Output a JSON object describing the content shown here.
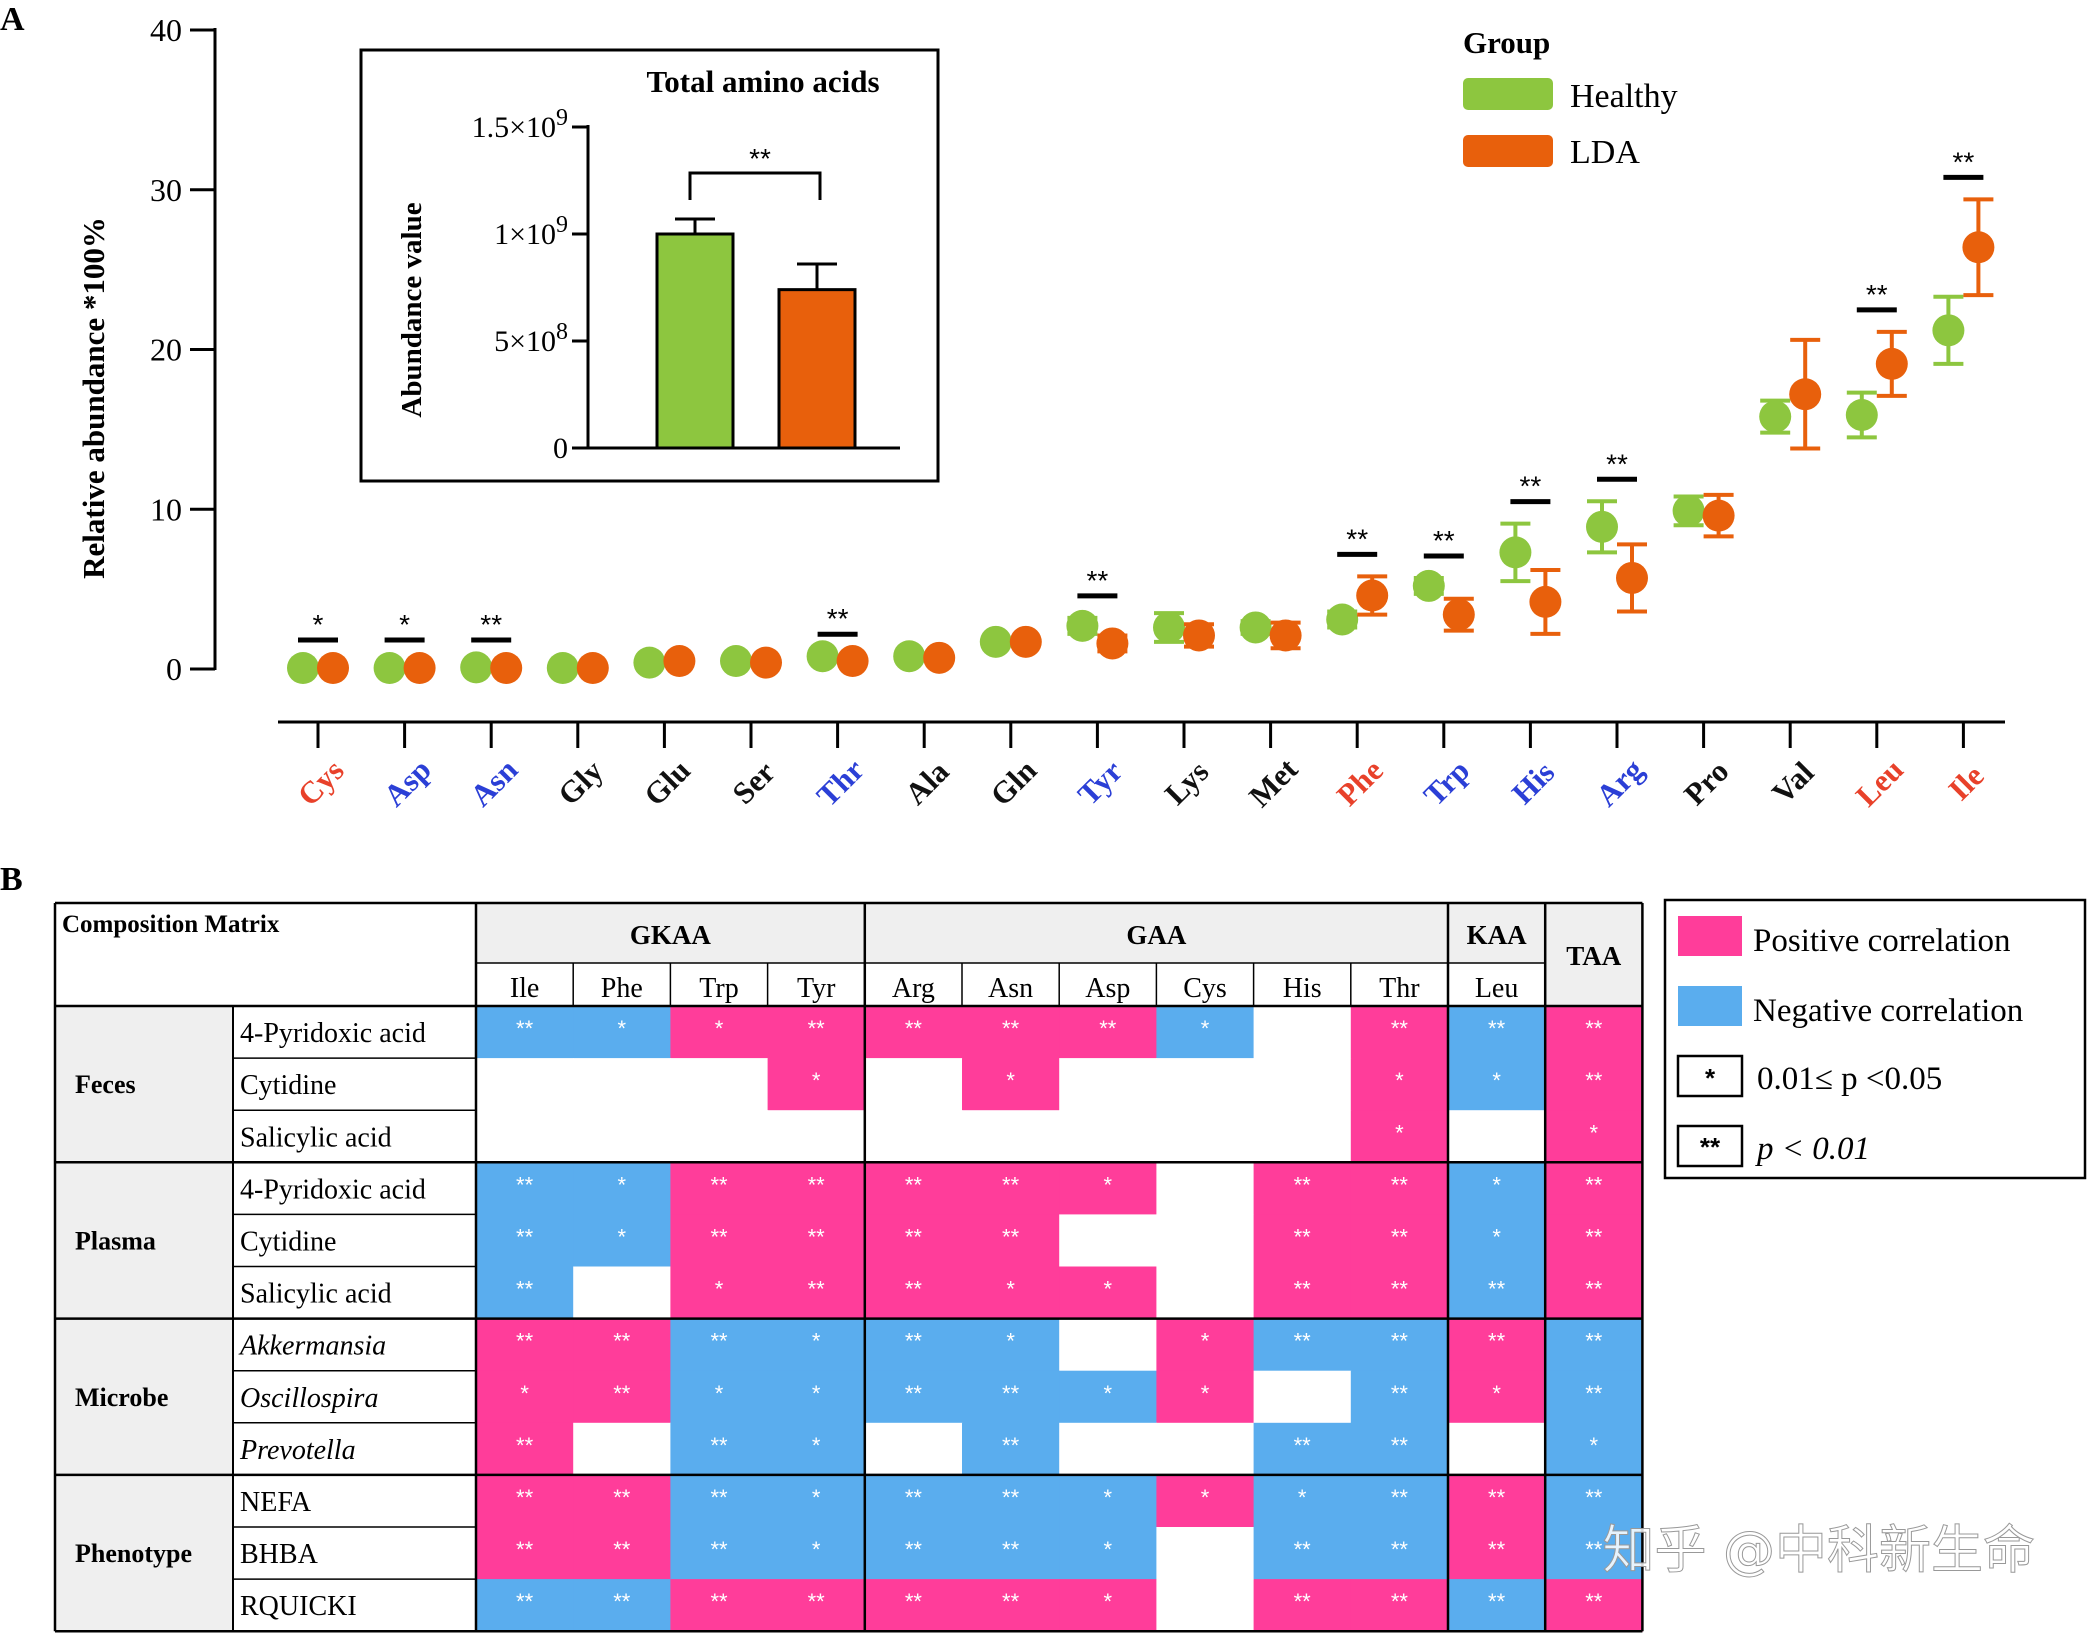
{
  "panel_a": {
    "letter": "A",
    "ylabel": "Relative abundance *100%",
    "y_ticks": [
      "0",
      "10",
      "20",
      "30",
      "40"
    ],
    "legend": {
      "title": "Group",
      "items": [
        "Healthy",
        "LDA"
      ]
    },
    "inset": {
      "title": "Total amino acids",
      "ylabel": "Abundance value",
      "y_ticks": [
        "0",
        "5×10",
        "1×10",
        "1.5×10"
      ],
      "y_tick_exps": [
        "",
        "8",
        "9",
        "9"
      ],
      "sig": "**"
    }
  },
  "panel_b": {
    "letter": "B",
    "header_left": "Composition  Matrix",
    "groups": [
      {
        "name": "GKAA",
        "cols": [
          "Ile",
          "Phe",
          "Trp",
          "Tyr"
        ]
      },
      {
        "name": "GAA",
        "cols": [
          "Arg",
          "Asn",
          "Asp",
          "Cys",
          "His",
          "Thr"
        ]
      },
      {
        "name": "KAA",
        "cols": [
          "Leu"
        ]
      },
      {
        "name": "TAA",
        "cols": [
          ""
        ]
      }
    ],
    "row_groups": [
      {
        "name": "Feces",
        "rows": [
          "4-Pyridoxic acid",
          "Cytidine",
          "Salicylic acid"
        ]
      },
      {
        "name": "Plasma",
        "rows": [
          "4-Pyridoxic acid",
          "Cytidine",
          "Salicylic acid"
        ]
      },
      {
        "name": "Microbe",
        "rows": [
          "Akkermansia",
          "Oscillospira",
          "Prevotella"
        ]
      },
      {
        "name": "Phenotype",
        "rows": [
          "NEFA",
          "BHBA",
          "RQUICKI"
        ]
      }
    ],
    "cells": [
      [
        "N**",
        "N*",
        "P*",
        "P**",
        "P**",
        "P**",
        "P**",
        "N*",
        "",
        "P**",
        "N**",
        "P**"
      ],
      [
        "",
        "",
        "",
        "P*",
        "",
        "P*",
        "",
        "",
        "",
        "P*",
        "N*",
        "P**"
      ],
      [
        "",
        "",
        "",
        "",
        "",
        "",
        "",
        "",
        "",
        "P*",
        "",
        "P*"
      ],
      [
        "N**",
        "N*",
        "P**",
        "P**",
        "P**",
        "P**",
        "P*",
        "",
        "P**",
        "P**",
        "N*",
        "P**"
      ],
      [
        "N**",
        "N*",
        "P**",
        "P**",
        "P**",
        "P**",
        "",
        "",
        "P**",
        "P**",
        "N*",
        "P**"
      ],
      [
        "N**",
        "",
        "P*",
        "P**",
        "P**",
        "P*",
        "P*",
        "",
        "P**",
        "P**",
        "N**",
        "P**"
      ],
      [
        "P**",
        "P**",
        "N**",
        "N*",
        "N**",
        "N*",
        "",
        "P*",
        "N**",
        "N**",
        "P**",
        "N**"
      ],
      [
        "P*",
        "P**",
        "N*",
        "N*",
        "N**",
        "N**",
        "N*",
        "P*",
        "",
        "N**",
        "P*",
        "N**"
      ],
      [
        "P**",
        "",
        "N**",
        "N*",
        "",
        "N**",
        "",
        "",
        "N**",
        "N**",
        "",
        "N*"
      ],
      [
        "P**",
        "P**",
        "N**",
        "N*",
        "N**",
        "N**",
        "N*",
        "P*",
        "N*",
        "N**",
        "P**",
        "N**"
      ],
      [
        "P**",
        "P**",
        "N**",
        "N*",
        "N**",
        "N**",
        "N*",
        "",
        "N**",
        "N**",
        "P**",
        "N**"
      ],
      [
        "N**",
        "N**",
        "P**",
        "P**",
        "P**",
        "P**",
        "P*",
        "",
        "P**",
        "P**",
        "N**",
        "P**"
      ]
    ],
    "legend": {
      "positive": "Positive correlation",
      "negative": "Negative correlation",
      "one_star": "*",
      "one_star_text": "0.01≤ p <0.05",
      "two_star": "**",
      "two_star_text": "p < 0.01"
    }
  },
  "watermark": "知乎 @中科新生命",
  "colors": {
    "healthy": "#8dc63f",
    "lda": "#e8600c",
    "positive": "#ff3d9a",
    "negative": "#5aadee",
    "label_red": "#e8412a",
    "label_blue": "#2b3fd6"
  },
  "chart_data": [
    {
      "type": "scatter",
      "panel": "A",
      "categories": [
        "Cys",
        "Asp",
        "Asn",
        "Gly",
        "Glu",
        "Ser",
        "Thr",
        "Ala",
        "Gln",
        "Tyr",
        "Lys",
        "Met",
        "Phe",
        "Trp",
        "His",
        "Arg",
        "Pro",
        "Val",
        "Leu",
        "Ile"
      ],
      "category_colors": [
        "red",
        "blue",
        "blue",
        "black",
        "black",
        "black",
        "blue",
        "black",
        "black",
        "blue",
        "black",
        "black",
        "red",
        "blue",
        "blue",
        "blue",
        "black",
        "black",
        "red",
        "red"
      ],
      "ylabel": "Relative abundance *100%",
      "ylim": [
        0,
        40
      ],
      "series": [
        {
          "name": "Healthy",
          "values": [
            0.0,
            0.0,
            0.1,
            0.05,
            0.4,
            0.5,
            0.8,
            0.8,
            1.7,
            2.7,
            2.6,
            2.6,
            3.1,
            5.2,
            7.3,
            8.9,
            9.9,
            15.8,
            15.9,
            21.2
          ],
          "errors": [
            0,
            0,
            0,
            0,
            0,
            0,
            0,
            0,
            0,
            0.5,
            0.9,
            0.4,
            0.5,
            0.5,
            1.8,
            1.6,
            0.9,
            1.0,
            1.4,
            2.1
          ]
        },
        {
          "name": "LDA",
          "values": [
            0.0,
            0.0,
            0.0,
            0.0,
            0.5,
            0.4,
            0.5,
            0.7,
            1.7,
            1.6,
            2.1,
            2.1,
            4.6,
            3.4,
            4.2,
            5.7,
            9.6,
            17.2,
            19.1,
            26.4
          ],
          "errors": [
            0,
            0,
            0,
            0,
            0,
            0,
            0,
            0,
            0,
            0.5,
            0.7,
            0.8,
            1.2,
            1.0,
            2.0,
            2.1,
            1.3,
            3.4,
            2.0,
            3.0
          ]
        }
      ],
      "significance": [
        "*",
        "*",
        "**",
        "",
        "",
        "",
        "**",
        "",
        "",
        "**",
        "",
        "",
        "**",
        "**",
        "**",
        "**",
        "",
        "",
        "**",
        "**"
      ]
    },
    {
      "type": "bar",
      "panel": "A-inset",
      "title": "Total amino acids",
      "ylabel": "Abundance value",
      "categories": [
        "Healthy",
        "LDA"
      ],
      "values": [
        1000000000,
        740000000
      ],
      "errors": [
        70000000,
        120000000
      ],
      "ylim": [
        0,
        1500000000
      ],
      "significance": "**"
    }
  ]
}
